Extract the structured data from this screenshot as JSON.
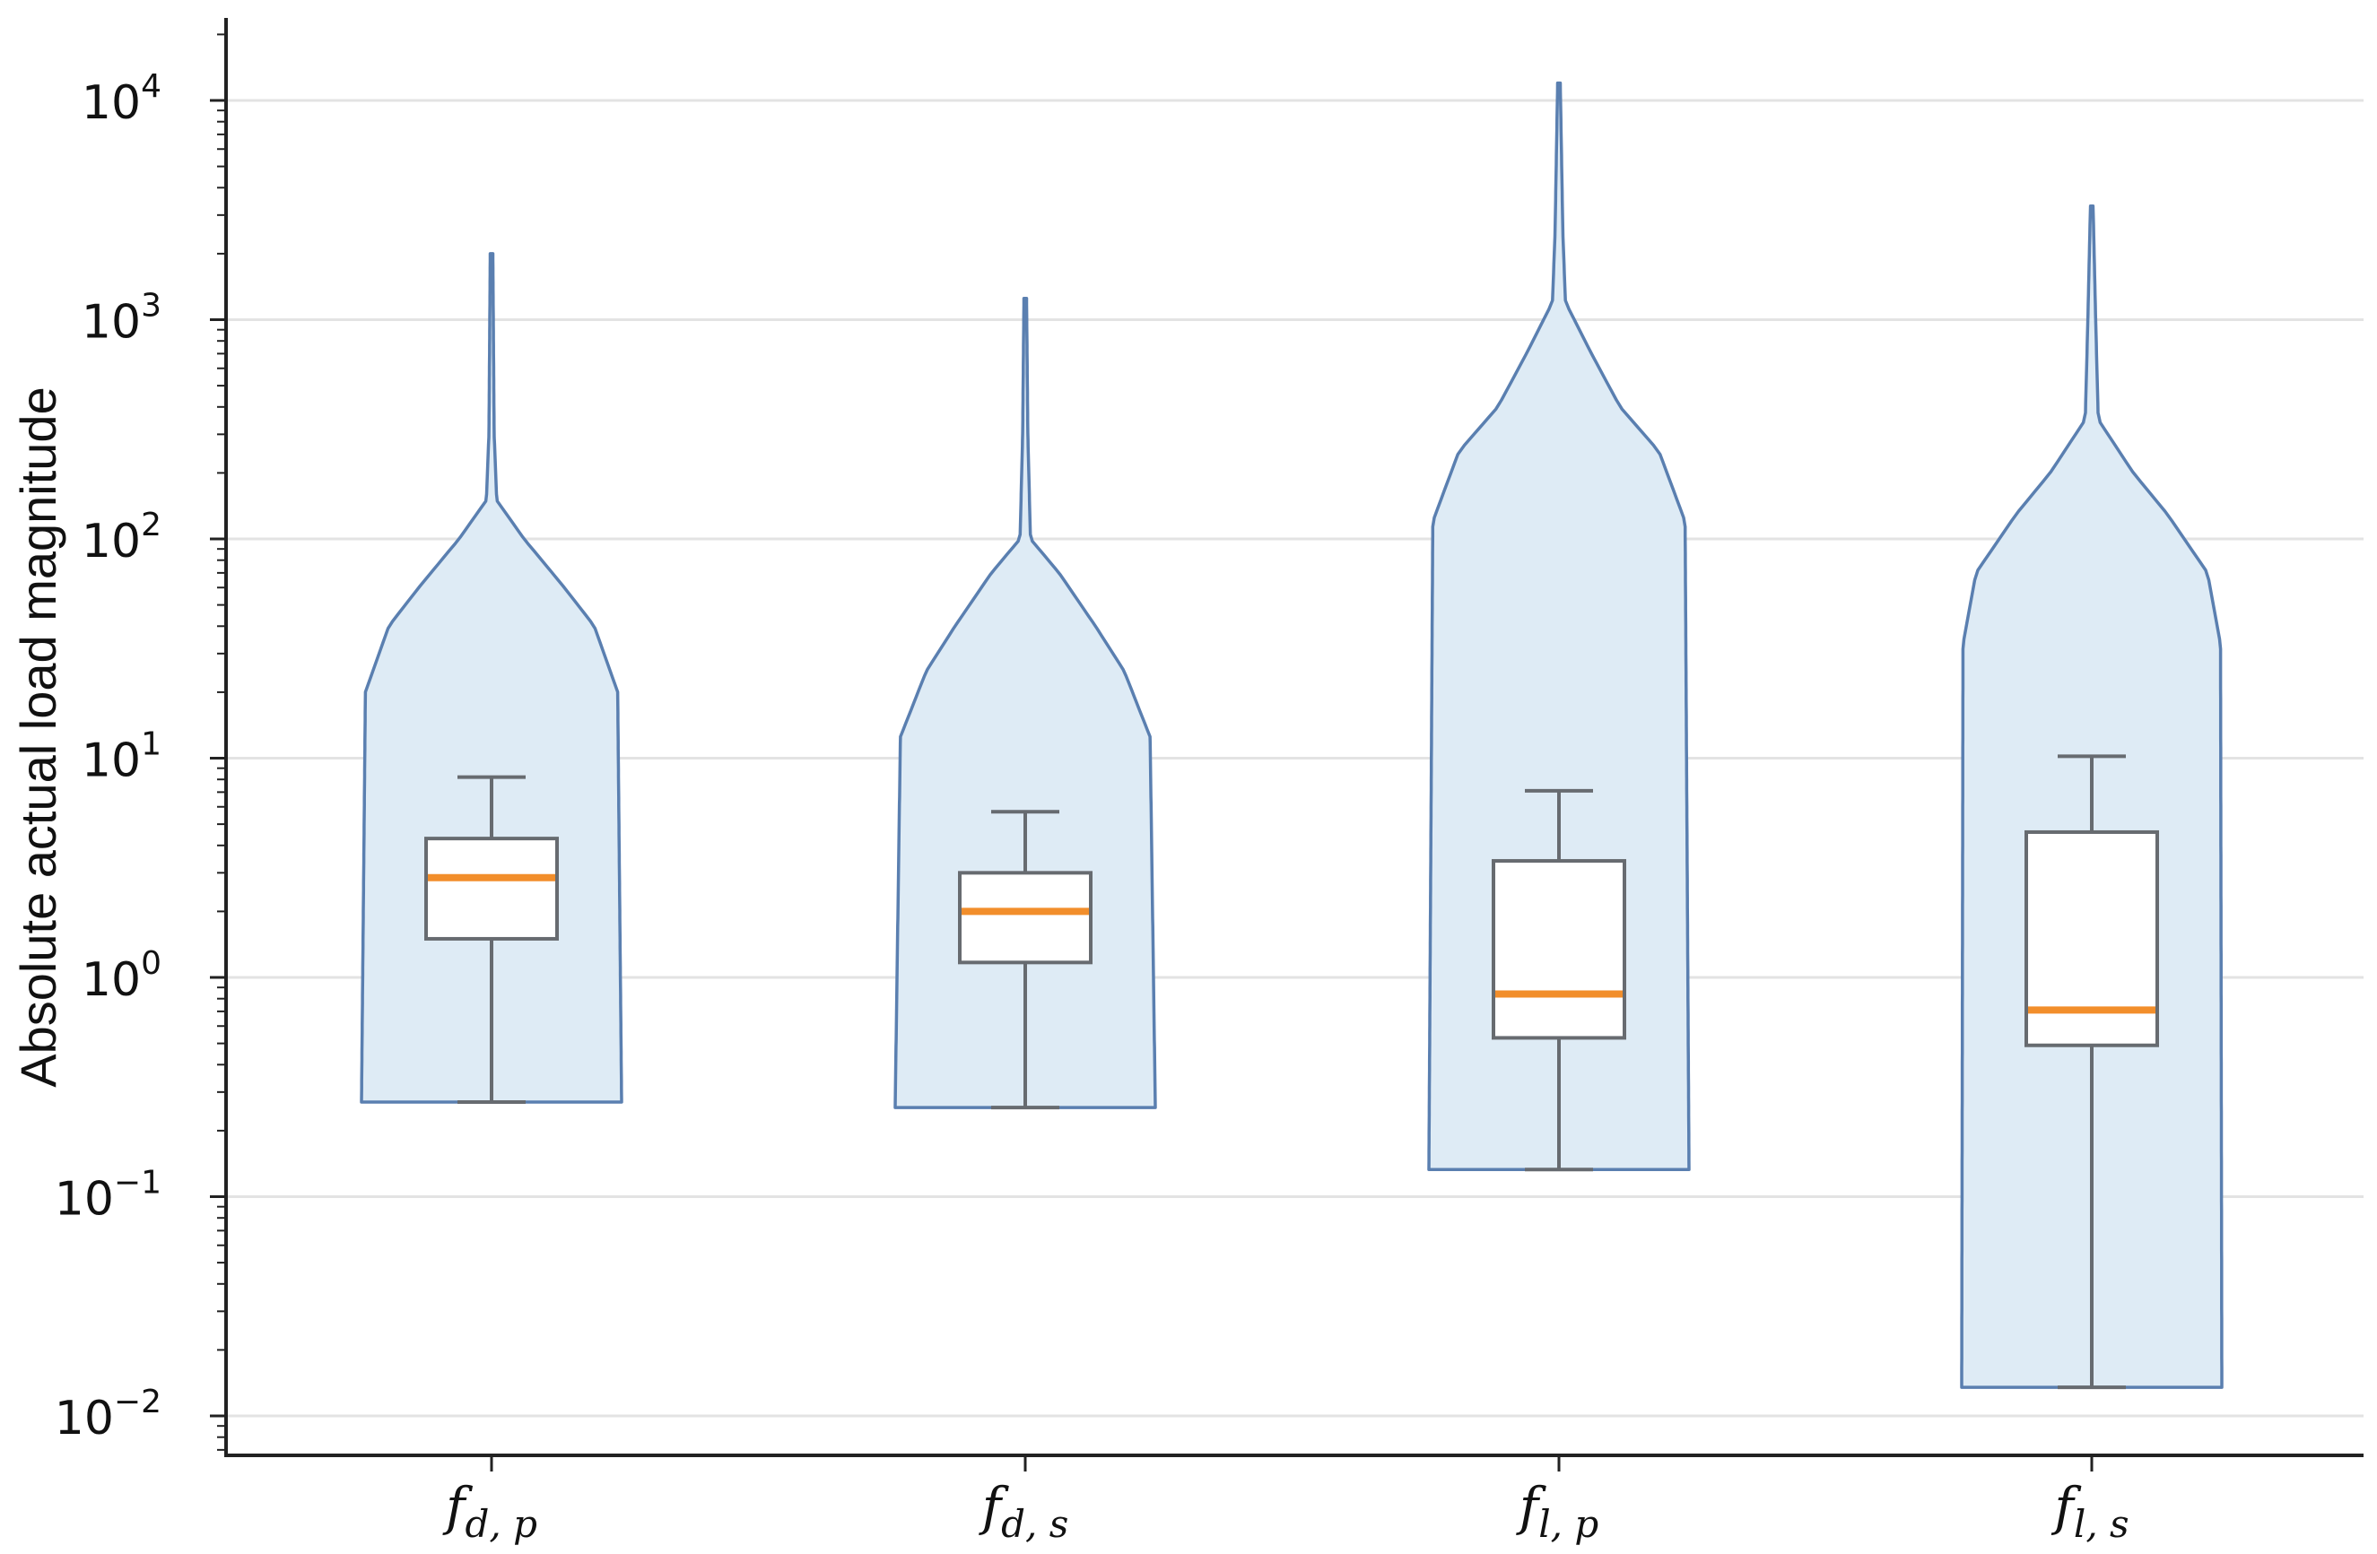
{
  "chart_data": {
    "type": "violin",
    "ylabel": "Absolute actual load magnitude",
    "xlabel": "",
    "title": "",
    "yscale": "log",
    "ylim": [
      0.006,
      20000
    ],
    "grid": "horizontal",
    "yticks": [
      {
        "base": "10",
        "exp": "4",
        "value": 10000
      },
      {
        "base": "10",
        "exp": "3",
        "value": 1000
      },
      {
        "base": "10",
        "exp": "2",
        "value": 100
      },
      {
        "base": "10",
        "exp": "1",
        "value": 10
      },
      {
        "base": "10",
        "exp": "0",
        "value": 1
      },
      {
        "base": "10",
        "exp": "−1",
        "value": 0.1
      },
      {
        "base": "10",
        "exp": "−2",
        "value": 0.01
      }
    ],
    "categories": [
      {
        "main": "f",
        "sub": "d, p"
      },
      {
        "main": "f",
        "sub": "d, s"
      },
      {
        "main": "f",
        "sub": "l, p"
      },
      {
        "main": "f",
        "sub": "l, s"
      }
    ],
    "box": [
      {
        "whisker_low": 0.27,
        "q1": 1.5,
        "median": 2.85,
        "q3": 4.3,
        "whisker_high": 8.2
      },
      {
        "whisker_low": 0.255,
        "q1": 1.17,
        "median": 2.0,
        "q3": 3.0,
        "whisker_high": 5.7
      },
      {
        "whisker_low": 0.133,
        "q1": 0.53,
        "median": 0.84,
        "q3": 3.4,
        "whisker_high": 7.1
      },
      {
        "whisker_low": 0.0135,
        "q1": 0.49,
        "median": 0.71,
        "q3": 4.6,
        "whisker_high": 10.2
      }
    ],
    "violin": [
      {
        "min": 0.27,
        "max": 2000,
        "profile": [
          [
            0.27,
            1.0
          ],
          [
            20,
            0.97
          ],
          [
            40,
            0.79
          ],
          [
            60,
            0.56
          ],
          [
            100,
            0.25
          ],
          [
            150,
            0.04
          ],
          [
            300,
            0.02
          ],
          [
            2000,
            0.01
          ]
        ]
      },
      {
        "min": 0.255,
        "max": 1250,
        "profile": [
          [
            0.255,
            1.0
          ],
          [
            12.5,
            0.96
          ],
          [
            25,
            0.76
          ],
          [
            40,
            0.54
          ],
          [
            70,
            0.26
          ],
          [
            100,
            0.04
          ],
          [
            300,
            0.02
          ],
          [
            1250,
            0.01
          ]
        ]
      },
      {
        "min": 0.133,
        "max": 12000,
        "profile": [
          [
            0.133,
            1.0
          ],
          [
            120,
            0.97
          ],
          [
            250,
            0.77
          ],
          [
            400,
            0.47
          ],
          [
            700,
            0.25
          ],
          [
            1200,
            0.05
          ],
          [
            2500,
            0.03
          ],
          [
            12000,
            0.01
          ]
        ]
      },
      {
        "min": 0.0135,
        "max": 3300,
        "profile": [
          [
            0.0135,
            1.0
          ],
          [
            33,
            0.99
          ],
          [
            70,
            0.89
          ],
          [
            130,
            0.58
          ],
          [
            200,
            0.32
          ],
          [
            350,
            0.05
          ],
          [
            1000,
            0.03
          ],
          [
            3300,
            0.01
          ]
        ]
      }
    ],
    "colors": {
      "violin_fill": "#deebf5",
      "violin_edge": "#5a7fb0",
      "box_edge": "#676b70",
      "median": "#f28e2b",
      "grid": "#e3e3e3",
      "axis": "#222222"
    }
  }
}
